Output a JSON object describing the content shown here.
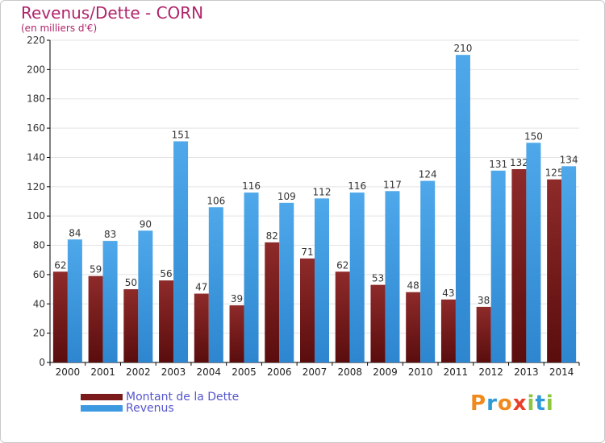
{
  "title": "Revenus/Dette - CORN",
  "subtitle": "(en milliers d'€)",
  "logo": {
    "letters": [
      "P",
      "r",
      "o",
      "x",
      "i",
      "t",
      "i"
    ],
    "colors": [
      "#f08a1c",
      "#2f9ad8",
      "#f08a1c",
      "#e8402a",
      "#8dc63f",
      "#2f9ad8",
      "#8dc63f"
    ]
  },
  "colors": {
    "title": "#b0246a",
    "dette": "#7a1a1a",
    "revenus": "#3d9ae0",
    "axis": "#000000",
    "grid": "#e3e3e3",
    "legend_text": "#5555cc"
  },
  "legend": [
    {
      "label": "Montant de la Dette",
      "color": "#7a1a1a"
    },
    {
      "label": "Revenus",
      "color": "#3d9ae0"
    }
  ],
  "chart_data": {
    "type": "bar",
    "categories": [
      "2000",
      "2001",
      "2002",
      "2003",
      "2004",
      "2005",
      "2006",
      "2007",
      "2008",
      "2009",
      "2010",
      "2011",
      "2012",
      "2013",
      "2014"
    ],
    "series": [
      {
        "name": "Montant de la Dette",
        "values": [
          62,
          59,
          50,
          56,
          47,
          39,
          82,
          71,
          62,
          53,
          48,
          43,
          38,
          132,
          125
        ]
      },
      {
        "name": "Revenus",
        "values": [
          84,
          83,
          90,
          151,
          106,
          116,
          109,
          112,
          116,
          117,
          124,
          210,
          131,
          150,
          134
        ]
      }
    ],
    "ylim": [
      0,
      220
    ],
    "yticks": [
      0,
      20,
      40,
      60,
      80,
      100,
      120,
      140,
      160,
      180,
      200,
      220
    ],
    "grid": true,
    "legend_position": "bottom-left"
  }
}
